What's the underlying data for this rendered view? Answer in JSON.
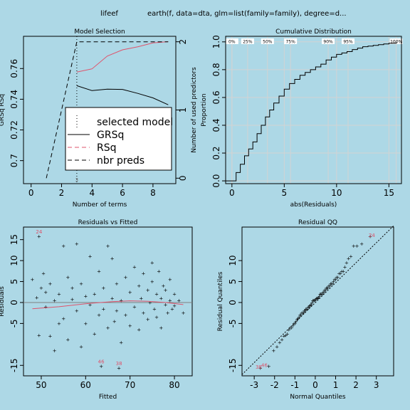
{
  "header": {
    "left": "lifeef",
    "right": "earth(f, data=dta, glm=list(family=family), degree=d..."
  },
  "chart_data": [
    {
      "id": "model_selection",
      "type": "line",
      "title": "Model Selection",
      "xlabel": "Number of terms",
      "ylabel": "GRSq   RSq",
      "ylabel_right": "Number of used predictors",
      "xlim": [
        -0.5,
        9.5
      ],
      "ylim": [
        0.685,
        0.781
      ],
      "y2lim": [
        -0.08,
        2.08
      ],
      "xticks": [
        0,
        2,
        4,
        6,
        8
      ],
      "yticks": [
        0.7,
        0.72,
        0.74,
        0.76
      ],
      "ytick_labels": [
        "0.7",
        "0.72",
        "0.74",
        "0.76"
      ],
      "y2ticks": [
        0,
        1,
        2
      ],
      "selected_terms": 3,
      "selected_label": "3",
      "series": [
        {
          "name": "GRSq",
          "x": [
            3,
            4,
            5,
            6,
            7,
            8,
            9
          ],
          "values": [
            0.7488,
            0.7456,
            0.7466,
            0.7464,
            0.7438,
            0.7409,
            0.7364
          ]
        },
        {
          "name": "RSq",
          "x": [
            3,
            4,
            5,
            6,
            7,
            8,
            9
          ],
          "values": [
            0.7577,
            0.7598,
            0.7681,
            0.7722,
            0.7742,
            0.7767,
            0.7775
          ]
        },
        {
          "name": "nbr preds",
          "x": [
            1,
            3,
            9
          ],
          "values": [
            0,
            2,
            2
          ]
        }
      ],
      "legend": [
        "selected model",
        "GRSq",
        "RSq",
        "nbr preds"
      ],
      "legend_position": "bottom-right",
      "colors": {
        "GRSq": "#000000",
        "RSq": "#df536b",
        "nbr preds": "#000000"
      }
    },
    {
      "id": "cumulative_distribution",
      "type": "line",
      "title": "Cumulative Distribution",
      "xlabel": "abs(Residuals)",
      "ylabel": "Proportion",
      "xlim": [
        -0.6,
        16.2
      ],
      "ylim": [
        -0.02,
        1.04
      ],
      "xticks": [
        0,
        5,
        10,
        15
      ],
      "yticks": [
        0,
        0.2,
        0.4,
        0.6,
        0.8,
        1
      ],
      "ytick_labels": [
        "0.0",
        "0.2",
        "0.4",
        "0.6",
        "0.8",
        "1.0"
      ],
      "grid": true,
      "quantile_labels": [
        "0%",
        "25%",
        "50%",
        "75%",
        "90%",
        "95%",
        "100%"
      ],
      "quantile_x": [
        0,
        1.5,
        3.4,
        5.6,
        9.2,
        11.1,
        15.7
      ],
      "x": [
        0,
        0.4,
        0.8,
        1.2,
        1.6,
        2.0,
        2.4,
        2.8,
        3.2,
        3.6,
        4.0,
        4.5,
        5.0,
        5.5,
        6.0,
        6.5,
        7.0,
        7.5,
        8.0,
        8.5,
        9.0,
        9.5,
        10.0,
        10.5,
        11.0,
        11.5,
        12.0,
        12.5,
        13.0,
        13.5,
        14.0,
        14.5,
        15.0,
        15.7
      ],
      "values": [
        0,
        0.06,
        0.12,
        0.18,
        0.23,
        0.28,
        0.34,
        0.4,
        0.46,
        0.51,
        0.56,
        0.61,
        0.66,
        0.7,
        0.73,
        0.76,
        0.78,
        0.8,
        0.82,
        0.84,
        0.87,
        0.89,
        0.91,
        0.92,
        0.93,
        0.945,
        0.955,
        0.965,
        0.97,
        0.975,
        0.98,
        0.985,
        0.99,
        1.0
      ]
    },
    {
      "id": "residuals_vs_fitted",
      "type": "scatter",
      "title": "Residuals vs Fitted",
      "xlabel": "Fitted",
      "ylabel": "Residuals",
      "xlim": [
        46,
        84
      ],
      "ylim": [
        -17.5,
        18
      ],
      "xticks": [
        50,
        60,
        70,
        80
      ],
      "yticks": [
        -15,
        -5,
        0,
        5,
        10,
        15
      ],
      "zero_line": true,
      "labeled_points": [
        {
          "label": "24",
          "x": 49.5,
          "y": 15.8
        },
        {
          "label": "46",
          "x": 63.5,
          "y": -15.2
        },
        {
          "label": "38",
          "x": 67.5,
          "y": -15.6
        }
      ],
      "points": [
        [
          48,
          5.5
        ],
        [
          49,
          1.2
        ],
        [
          49.5,
          -7.8
        ],
        [
          50,
          3.5
        ],
        [
          50.5,
          7
        ],
        [
          51,
          -1
        ],
        [
          51,
          2.5
        ],
        [
          52,
          4.5
        ],
        [
          52,
          -8
        ],
        [
          53,
          -11.5
        ],
        [
          53,
          0.5
        ],
        [
          54,
          -5
        ],
        [
          54,
          2
        ],
        [
          55,
          13.5
        ],
        [
          55,
          -3.8
        ],
        [
          56,
          6
        ],
        [
          56,
          -8.8
        ],
        [
          57,
          0.8
        ],
        [
          57,
          3.5
        ],
        [
          58,
          14
        ],
        [
          58,
          -2
        ],
        [
          59,
          4.5
        ],
        [
          59,
          -10.5
        ],
        [
          60,
          1.5
        ],
        [
          60,
          -5
        ],
        [
          61,
          11
        ],
        [
          61,
          -0.5
        ],
        [
          62,
          -7.5
        ],
        [
          62,
          2
        ],
        [
          63,
          7.5
        ],
        [
          63,
          -3
        ],
        [
          64,
          3.5
        ],
        [
          64,
          -1.5
        ],
        [
          65,
          13.5
        ],
        [
          65,
          -6
        ],
        [
          66,
          10.5
        ],
        [
          66,
          1
        ],
        [
          66.5,
          -4.5
        ],
        [
          67,
          4.5
        ],
        [
          67,
          -2
        ],
        [
          68,
          -9.5
        ],
        [
          68,
          0.5
        ],
        [
          69,
          6
        ],
        [
          69,
          -3
        ],
        [
          70,
          2.5
        ],
        [
          70,
          -5.5
        ],
        [
          71,
          8.5
        ],
        [
          71,
          -1
        ],
        [
          72,
          4
        ],
        [
          72,
          -6.5
        ],
        [
          72.5,
          1
        ],
        [
          73,
          7
        ],
        [
          73,
          -2.5
        ],
        [
          74,
          3
        ],
        [
          74,
          -4
        ],
        [
          74.5,
          0
        ],
        [
          75,
          9.5
        ],
        [
          75,
          5
        ],
        [
          75.5,
          -1.5
        ],
        [
          76,
          2
        ],
        [
          76,
          -3.5
        ],
        [
          76.5,
          7.5
        ],
        [
          77,
          1
        ],
        [
          77,
          -6
        ],
        [
          77.5,
          4
        ],
        [
          78,
          -0.5
        ],
        [
          78,
          3
        ],
        [
          78.5,
          -2.5
        ],
        [
          79,
          5.5
        ],
        [
          79,
          0.5
        ],
        [
          79.5,
          -1.5
        ],
        [
          80,
          2
        ],
        [
          80,
          -0.8
        ],
        [
          81,
          0.5
        ],
        [
          82,
          -2.5
        ]
      ],
      "smooth": {
        "x": [
          48,
          54,
          60,
          66,
          70,
          74,
          78,
          82
        ],
        "values": [
          -1.5,
          -1,
          -0.3,
          0.2,
          0.4,
          0.3,
          0,
          -0.5
        ]
      },
      "colors": {
        "points": "#000000",
        "smooth": "#df536b",
        "labels": "#df536b"
      }
    },
    {
      "id": "residual_qq",
      "type": "scatter",
      "title": "Residual QQ",
      "xlabel": "Normal Quantiles",
      "ylabel": "Residual Quantiles",
      "xlim": [
        -3.6,
        3.85
      ],
      "ylim": [
        -17.5,
        18
      ],
      "xticks": [
        -3,
        -2,
        -1,
        0,
        1,
        2,
        3
      ],
      "yticks": [
        -15,
        -5,
        0,
        5,
        10
      ],
      "reference_line": {
        "x": [
          -3.6,
          3.85
        ],
        "values": [
          -17.2,
          18.3
        ]
      },
      "labeled_points": [
        {
          "label": "24",
          "x": 2.78,
          "y": 15.8
        },
        {
          "label": "38",
          "x": -2.78,
          "y": -15.6
        },
        {
          "label": "46",
          "x": -2.5,
          "y": -15.2
        }
      ],
      "colors": {
        "points": "#000000",
        "line": "#000000",
        "labels": "#df536b"
      }
    }
  ]
}
